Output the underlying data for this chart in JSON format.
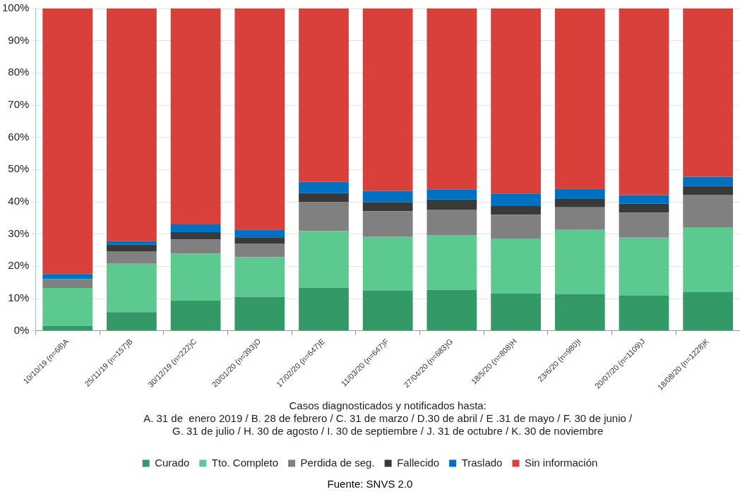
{
  "chart_data": {
    "type": "bar",
    "stacked": true,
    "xlabel": "Casos diagnosticados y notificados hasta:",
    "categories": [
      "10/10/19 (n=68)A",
      "25/11/19 (n=157)B",
      "30/12/19 (n=222)C",
      "20/01/20 (n=393)D",
      "17/02/20 (n=647)E",
      "11/03/20 (n=647)F",
      "27/04/20 (n=683)G",
      "18/5/20 (n=808)H",
      "23/6/20 (n=980)I",
      "20/07/20 (n=1109)J",
      "18/08/20 (n=1228)K"
    ],
    "series": [
      {
        "name": "Curado",
        "color": "#339966",
        "values": [
          1.5,
          5.8,
          9.4,
          10.5,
          13.3,
          12.4,
          12.7,
          11.6,
          11.3,
          10.9,
          12.0
        ]
      },
      {
        "name": "Tto. Completo",
        "color": "#5cc990",
        "values": [
          11.8,
          15.0,
          14.5,
          12.3,
          17.6,
          16.9,
          17.0,
          17.0,
          20.0,
          18.0,
          20.1
        ]
      },
      {
        "name": "Perdida de seg.",
        "color": "#808080",
        "values": [
          2.7,
          3.9,
          4.4,
          4.3,
          9.0,
          7.8,
          7.9,
          7.4,
          7.0,
          7.7,
          10.1
        ]
      },
      {
        "name": "Fallecido",
        "color": "#393939",
        "values": [
          0,
          2.0,
          2.3,
          1.9,
          2.8,
          2.8,
          3.1,
          2.7,
          2.6,
          2.8,
          2.7
        ]
      },
      {
        "name": "Traslado",
        "color": "#0070c0",
        "values": [
          1.6,
          1.2,
          2.4,
          2.4,
          3.5,
          3.5,
          3.2,
          3.9,
          3.2,
          2.7,
          2.9
        ]
      },
      {
        "name": "Sin información",
        "color": "#d9403b",
        "values": [
          82.4,
          72.1,
          67.0,
          68.6,
          53.8,
          56.6,
          56.1,
          57.4,
          55.9,
          57.9,
          52.2
        ]
      }
    ],
    "ylim": [
      0,
      100
    ],
    "yticks": [
      {
        "value": 0,
        "label": "0%"
      },
      {
        "value": 10,
        "label": "10%"
      },
      {
        "value": 20,
        "label": "20%"
      },
      {
        "value": 30,
        "label": "30%"
      },
      {
        "value": 40,
        "label": "40%"
      },
      {
        "value": 50,
        "label": "50%"
      },
      {
        "value": 60,
        "label": "60%"
      },
      {
        "value": 70,
        "label": "70%"
      },
      {
        "value": 80,
        "label": "80%"
      },
      {
        "value": 90,
        "label": "90%"
      },
      {
        "value": 100,
        "label": "100%"
      }
    ],
    "grid": "y",
    "legend": "bottom",
    "annotations": [
      "A. 31 de  enero 2019 / B. 28 de febrero / C. 31 de marzo / D.30 de abril / E .31 de mayo / F. 30 de junio /",
      "G. 31 de julio / H. 30 de agosto / I. 30 de septiembre / J. 31 de octubre / K. 30 de noviembre",
      "Fuente: SNVS 2.0"
    ]
  }
}
